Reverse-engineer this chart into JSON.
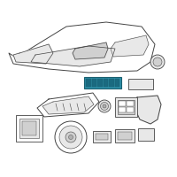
{
  "bg_color": "#ffffff",
  "line_color": "#444444",
  "fill_light": "#e8e8e8",
  "fill_mid": "#d0d0d0",
  "fill_dark": "#b0b0b0",
  "highlight_fill": "#2e8fa8",
  "highlight_edge": "#1a6070",
  "highlight_btn": "#1a6a80"
}
